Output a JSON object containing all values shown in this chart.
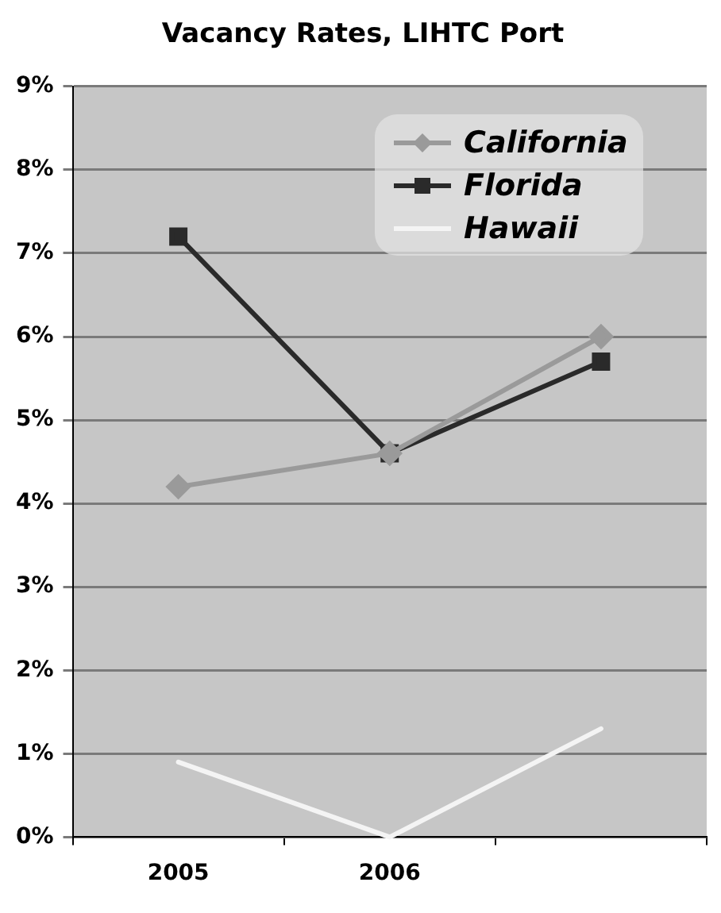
{
  "chart_data": {
    "type": "line",
    "title": "Vacancy Rates, LIHTC Port",
    "categories": [
      "2005",
      "2006",
      null
    ],
    "series": [
      {
        "name": "California",
        "color": "#9a9a9a",
        "marker": "diamond",
        "values": [
          4.2,
          4.6,
          6.0
        ]
      },
      {
        "name": "Florida",
        "color": "#2a2a2a",
        "marker": "square",
        "values": [
          7.2,
          4.6,
          5.7
        ]
      },
      {
        "name": "Hawaii",
        "color": "#f4f4f4",
        "marker": "none",
        "values": [
          0.9,
          0,
          1.3
        ]
      }
    ],
    "ylim": [
      0,
      9
    ],
    "yticks": [
      {
        "value": 0,
        "label": "0%"
      },
      {
        "value": 1,
        "label": "1%"
      },
      {
        "value": 2,
        "label": "2%"
      },
      {
        "value": 3,
        "label": "3%"
      },
      {
        "value": 4,
        "label": "4%"
      },
      {
        "value": 5,
        "label": "5%"
      },
      {
        "value": 6,
        "label": "6%"
      },
      {
        "value": 7,
        "label": "7%"
      },
      {
        "value": 8,
        "label": "8%"
      },
      {
        "value": 9,
        "label": "9%"
      }
    ],
    "grid": "y",
    "legend": "top right",
    "line_style": "solid"
  }
}
